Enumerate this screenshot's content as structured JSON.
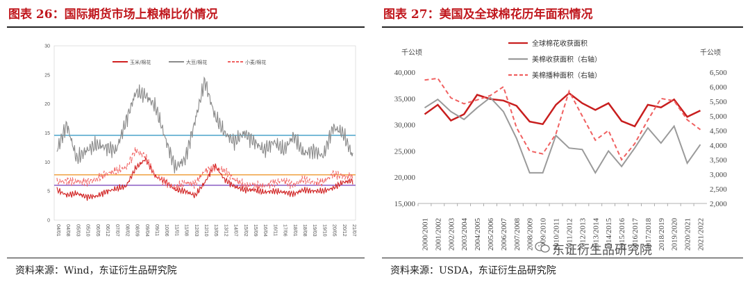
{
  "left": {
    "title": "图表 26：国际期货市场上粮棉比价情况",
    "source": "资料来源：Wind，东证衍生品研究院",
    "chart_data": {
      "type": "line",
      "ylim": [
        0,
        30
      ],
      "yticks": [
        "0",
        "5",
        "10",
        "15",
        "20",
        "25",
        "30"
      ],
      "x": [
        "04/01",
        "04/08",
        "05/03",
        "05/10",
        "06/05",
        "06/12",
        "07/07",
        "08/02",
        "08/09",
        "09/04",
        "09/11",
        "10/06",
        "11/01",
        "11/08",
        "12/03",
        "12/10",
        "13/05",
        "13/12",
        "14/07",
        "15/02",
        "15/09",
        "16/04",
        "16/11",
        "17/06",
        "18/01",
        "18/08",
        "19/03",
        "19/10",
        "20/05",
        "20/12",
        "21/07"
      ],
      "series": [
        {
          "name": "玉米/棉花",
          "color": "#d01f1f",
          "dash": "",
          "values": [
            5.2,
            4.3,
            4.6,
            4.0,
            4.1,
            4.9,
            5.4,
            5.8,
            9.0,
            10.5,
            7.5,
            6.7,
            5.2,
            5.0,
            4.2,
            6.5,
            9.5,
            7.0,
            5.8,
            5.2,
            5.2,
            4.8,
            5.0,
            4.8,
            4.5,
            5.2,
            5.0,
            5.0,
            5.5,
            6.5,
            6.8
          ]
        },
        {
          "name": "大豆/棉花",
          "color": "#8a8a8a",
          "dash": "",
          "values": [
            12.0,
            16.5,
            10.5,
            12.0,
            13.0,
            12.5,
            12.0,
            17.0,
            22.0,
            21.5,
            19.5,
            14.0,
            9.0,
            10.5,
            17.0,
            24.0,
            18.0,
            15.0,
            13.5,
            15.0,
            13.5,
            12.0,
            13.5,
            12.0,
            14.5,
            11.5,
            12.0,
            11.0,
            16.0,
            15.0,
            11.0
          ]
        },
        {
          "name": "小麦/棉花",
          "color": "#f06060",
          "dash": "5,3",
          "values": [
            6.5,
            6.8,
            6.6,
            6.6,
            7.0,
            8.0,
            8.5,
            9.0,
            12.0,
            11.0,
            7.5,
            6.5,
            5.5,
            6.5,
            6.2,
            8.5,
            9.0,
            8.5,
            7.0,
            6.0,
            6.0,
            5.8,
            6.5,
            6.8,
            6.0,
            7.0,
            6.5,
            6.5,
            8.0,
            7.5,
            7.5
          ]
        }
      ],
      "hlines": [
        {
          "value": 14.6,
          "color": "#4aa3c9"
        },
        {
          "value": 7.8,
          "color": "#f0a040"
        },
        {
          "value": 6.0,
          "color": "#8a5cc4"
        }
      ]
    }
  },
  "right": {
    "title": "图表 27：美国及全球棉花历年面积情况",
    "source": "资料来源：USDA，东证衍生品研究院",
    "watermark": "东证衍生品研究院",
    "chart_data": {
      "type": "line",
      "unit_left": "千公顷",
      "unit_right": "千公顷",
      "ylim_left": [
        15000,
        40000
      ],
      "ylim_right": [
        2000,
        6500
      ],
      "yticks_left": [
        "15,000",
        "20,000",
        "25,000",
        "30,000",
        "35,000",
        "40,000"
      ],
      "yticks_right": [
        "2,000",
        "2,500",
        "3,000",
        "3,500",
        "4,000",
        "4,500",
        "5,000",
        "5,500",
        "6,000",
        "6,500"
      ],
      "categories": [
        "2000/2001",
        "2001/2002",
        "2002/2003",
        "2003/2004",
        "2004/2005",
        "2005/2006",
        "2006/2007",
        "2007/2008",
        "2008/2009",
        "2009/2010",
        "2010/2011",
        "2011/2012",
        "2012/2013",
        "2013/2014",
        "2014/2015",
        "2015/2016",
        "2016/2017",
        "2017/2018",
        "2018/2019",
        "2019/2020",
        "2020/2021",
        "2021/2022"
      ],
      "series": [
        {
          "name": "全球棉花收获面积",
          "axis": "left",
          "color": "#c81e1e",
          "dash": "",
          "width": 2.5,
          "values": [
            32000,
            33800,
            30800,
            32000,
            35700,
            34900,
            34600,
            33600,
            30600,
            30100,
            33800,
            36000,
            34100,
            32800,
            34100,
            30700,
            29700,
            33800,
            33300,
            34800,
            31500,
            32700
          ]
        },
        {
          "name": "美棉收获面积（右轴）",
          "axis": "right",
          "color": "#9a9a9a",
          "dash": "",
          "width": 2,
          "values": [
            5280,
            5570,
            5150,
            4880,
            5280,
            5630,
            5150,
            4230,
            3050,
            3050,
            4330,
            3900,
            3850,
            3050,
            3800,
            3270,
            3900,
            4590,
            4070,
            4650,
            3380,
            4020
          ]
        },
        {
          "name": "美棉播种面积（右轴）",
          "axis": "right",
          "color": "#f06060",
          "dash": "6,4",
          "width": 2,
          "values": [
            6230,
            6290,
            5620,
            5420,
            5550,
            5700,
            6000,
            4600,
            3800,
            3700,
            4380,
            5850,
            5000,
            4170,
            4500,
            3500,
            4050,
            4860,
            5600,
            5520,
            4870,
            4530
          ]
        }
      ]
    }
  }
}
